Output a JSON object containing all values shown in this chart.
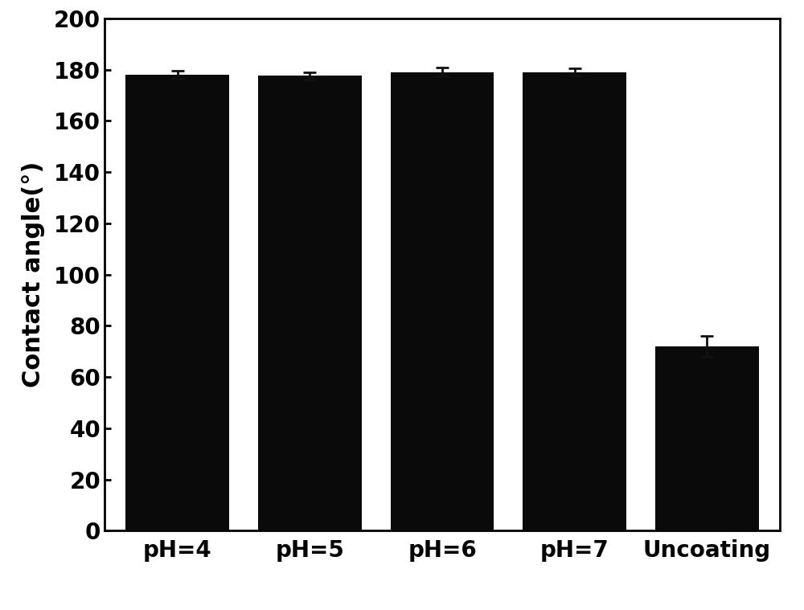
{
  "categories": [
    "pH=4",
    "pH=5",
    "pH=6",
    "pH=7",
    "Uncoating"
  ],
  "values": [
    178.0,
    177.5,
    179.0,
    179.0,
    72.0
  ],
  "errors": [
    1.5,
    1.5,
    1.8,
    1.5,
    4.0
  ],
  "bar_color": "#0a0a0a",
  "ylabel": "Contact angle(°)",
  "ylim": [
    0,
    200
  ],
  "yticks": [
    0,
    20,
    40,
    60,
    80,
    100,
    120,
    140,
    160,
    180,
    200
  ],
  "background_color": "#ffffff",
  "bar_width": 0.78,
  "label_fontsize": 22,
  "tick_fontsize": 20,
  "spine_linewidth": 2.0,
  "error_capsize": 6,
  "error_linewidth": 2.0
}
